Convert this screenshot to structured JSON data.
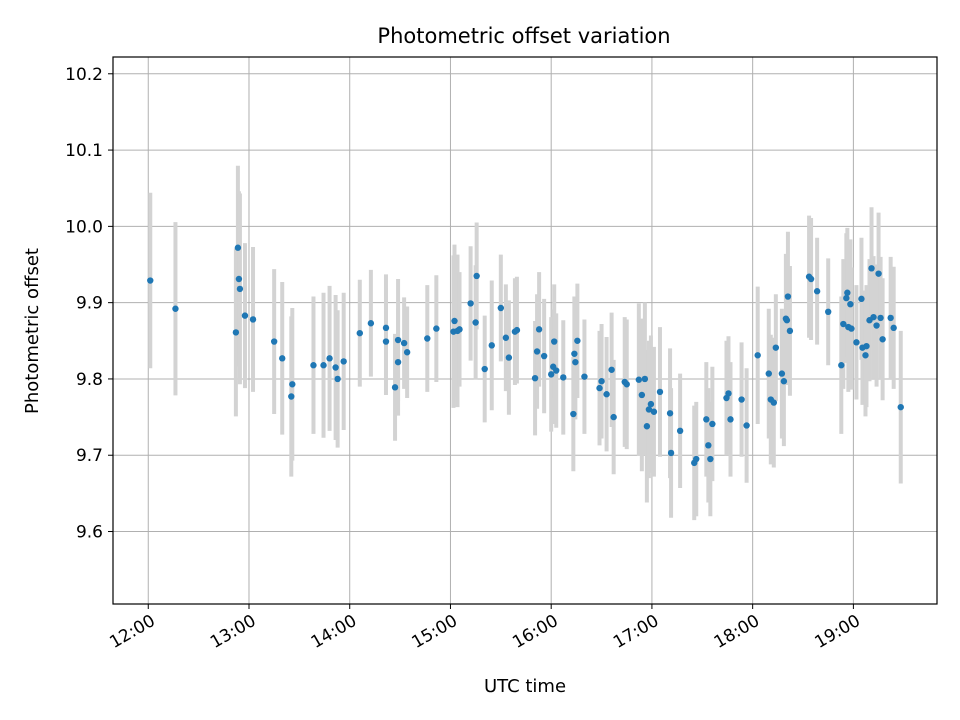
{
  "chart_data": {
    "type": "scatter",
    "title": "Photometric offset variation",
    "xlabel": "UTC time",
    "ylabel": "Photometric offset",
    "x_unit": "hours UTC",
    "xlim": [
      11.65,
      19.83
    ],
    "ylim": [
      9.505,
      10.222
    ],
    "xticks": [
      {
        "value": 12,
        "label": "12:00"
      },
      {
        "value": 13,
        "label": "13:00"
      },
      {
        "value": 14,
        "label": "14:00"
      },
      {
        "value": 15,
        "label": "15:00"
      },
      {
        "value": 16,
        "label": "16:00"
      },
      {
        "value": 17,
        "label": "17:00"
      },
      {
        "value": 18,
        "label": "18:00"
      },
      {
        "value": 19,
        "label": "19:00"
      }
    ],
    "yticks": [
      {
        "value": 9.6,
        "label": "9.6"
      },
      {
        "value": 9.7,
        "label": "9.7"
      },
      {
        "value": 9.8,
        "label": "9.8"
      },
      {
        "value": 9.9,
        "label": "9.9"
      },
      {
        "value": 10.0,
        "label": "10.0"
      },
      {
        "value": 10.1,
        "label": "10.1"
      },
      {
        "value": 10.2,
        "label": "10.2"
      }
    ],
    "grid": true,
    "colors": {
      "points": "#1f77b4",
      "errorbars": "#d3d3d3",
      "grid": "#b0b0b0"
    },
    "series": [
      {
        "points": [
          [
            12.02,
            9.929,
            0.23
          ],
          [
            12.27,
            9.892,
            0.227
          ],
          [
            12.87,
            9.861,
            0.22
          ],
          [
            12.89,
            9.972,
            0.215
          ],
          [
            12.9,
            9.931,
            0.23
          ],
          [
            12.91,
            9.918,
            0.25
          ],
          [
            12.96,
            9.883,
            0.19
          ],
          [
            13.04,
            9.878,
            0.19
          ],
          [
            13.25,
            9.849,
            0.19
          ],
          [
            13.33,
            9.827,
            0.2
          ],
          [
            13.43,
            9.793,
            0.2
          ],
          [
            13.42,
            9.777,
            0.21
          ],
          [
            13.64,
            9.818,
            0.18
          ],
          [
            13.74,
            9.818,
            0.19
          ],
          [
            13.8,
            9.827,
            0.19
          ],
          [
            13.86,
            9.815,
            0.19
          ],
          [
            13.88,
            9.8,
            0.18
          ],
          [
            13.94,
            9.823,
            0.18
          ],
          [
            14.1,
            9.86,
            0.14
          ],
          [
            14.21,
            9.873,
            0.14
          ],
          [
            14.36,
            9.867,
            0.14
          ],
          [
            14.36,
            9.849,
            0.14
          ],
          [
            14.45,
            9.789,
            0.14
          ],
          [
            14.48,
            9.822,
            0.14
          ],
          [
            14.48,
            9.851,
            0.16
          ],
          [
            14.54,
            9.847,
            0.12
          ],
          [
            14.57,
            9.835,
            0.12
          ],
          [
            14.77,
            9.853,
            0.14
          ],
          [
            14.86,
            9.866,
            0.14
          ],
          [
            15.03,
            9.862,
            0.2
          ],
          [
            15.04,
            9.876,
            0.2
          ],
          [
            15.07,
            9.863,
            0.2
          ],
          [
            15.09,
            9.865,
            0.15
          ],
          [
            15.2,
            9.899,
            0.15
          ],
          [
            15.25,
            9.874,
            0.15
          ],
          [
            15.26,
            9.935,
            0.14
          ],
          [
            15.34,
            9.813,
            0.14
          ],
          [
            15.41,
            9.844,
            0.17
          ],
          [
            15.5,
            9.893,
            0.14
          ],
          [
            15.55,
            9.854,
            0.14
          ],
          [
            15.58,
            9.828,
            0.15
          ],
          [
            15.64,
            9.862,
            0.14
          ],
          [
            15.66,
            9.864,
            0.14
          ],
          [
            15.84,
            9.801,
            0.15
          ],
          [
            15.86,
            9.836,
            0.15
          ],
          [
            15.88,
            9.865,
            0.15
          ],
          [
            15.93,
            9.83,
            0.15
          ],
          [
            16.0,
            9.806,
            0.15
          ],
          [
            16.02,
            9.816,
            0.15
          ],
          [
            16.03,
            9.849,
            0.15
          ],
          [
            16.05,
            9.811,
            0.15
          ],
          [
            16.12,
            9.802,
            0.15
          ],
          [
            16.22,
            9.754,
            0.15
          ],
          [
            16.23,
            9.833,
            0.15
          ],
          [
            16.24,
            9.822,
            0.15
          ],
          [
            16.26,
            9.85,
            0.15
          ],
          [
            16.33,
            9.803,
            0.15
          ],
          [
            16.48,
            9.788,
            0.15
          ],
          [
            16.5,
            9.797,
            0.15
          ],
          [
            16.55,
            9.78,
            0.15
          ],
          [
            16.6,
            9.812,
            0.15
          ],
          [
            16.62,
            9.75,
            0.15
          ],
          [
            16.73,
            9.796,
            0.17
          ],
          [
            16.75,
            9.793,
            0.17
          ],
          [
            16.87,
            9.799,
            0.2
          ],
          [
            16.9,
            9.779,
            0.2
          ],
          [
            16.93,
            9.8,
            0.2
          ],
          [
            16.95,
            9.738,
            0.2
          ],
          [
            16.97,
            9.76,
            0.18
          ],
          [
            16.99,
            9.767,
            0.18
          ],
          [
            17.02,
            9.757,
            0.17
          ],
          [
            17.08,
            9.783,
            0.17
          ],
          [
            17.18,
            9.755,
            0.17
          ],
          [
            17.19,
            9.703,
            0.17
          ],
          [
            17.28,
            9.732,
            0.15
          ],
          [
            17.42,
            9.69,
            0.15
          ],
          [
            17.44,
            9.695,
            0.15
          ],
          [
            17.54,
            9.747,
            0.15
          ],
          [
            17.56,
            9.713,
            0.15
          ],
          [
            17.58,
            9.695,
            0.15
          ],
          [
            17.6,
            9.741,
            0.15
          ],
          [
            17.74,
            9.775,
            0.15
          ],
          [
            17.76,
            9.781,
            0.15
          ],
          [
            17.78,
            9.747,
            0.15
          ],
          [
            17.89,
            9.773,
            0.15
          ],
          [
            17.94,
            9.739,
            0.15
          ],
          [
            18.05,
            9.831,
            0.18
          ],
          [
            18.16,
            9.807,
            0.17
          ],
          [
            18.18,
            9.773,
            0.17
          ],
          [
            18.21,
            9.769,
            0.17
          ],
          [
            18.23,
            9.841,
            0.14
          ],
          [
            18.29,
            9.807,
            0.17
          ],
          [
            18.31,
            9.797,
            0.17
          ],
          [
            18.33,
            9.879,
            0.17
          ],
          [
            18.34,
            9.877,
            0.17
          ],
          [
            18.35,
            9.908,
            0.17
          ],
          [
            18.37,
            9.863,
            0.17
          ],
          [
            18.56,
            9.934,
            0.16
          ],
          [
            18.58,
            9.931,
            0.16
          ],
          [
            18.64,
            9.915,
            0.14
          ],
          [
            18.75,
            9.888,
            0.14
          ],
          [
            18.88,
            9.818,
            0.18
          ],
          [
            18.9,
            9.872,
            0.17
          ],
          [
            18.93,
            9.906,
            0.17
          ],
          [
            18.94,
            9.913,
            0.17
          ],
          [
            18.95,
            9.868,
            0.17
          ],
          [
            18.97,
            9.898,
            0.17
          ],
          [
            18.98,
            9.866,
            0.16
          ],
          [
            19.03,
            9.848,
            0.15
          ],
          [
            19.08,
            9.905,
            0.16
          ],
          [
            19.09,
            9.841,
            0.15
          ],
          [
            19.12,
            9.831,
            0.16
          ],
          [
            19.13,
            9.843,
            0.16
          ],
          [
            19.16,
            9.877,
            0.16
          ],
          [
            19.18,
            9.945,
            0.16
          ],
          [
            19.2,
            9.881,
            0.16
          ],
          [
            19.23,
            9.87,
            0.16
          ],
          [
            19.25,
            9.938,
            0.16
          ],
          [
            19.27,
            9.88,
            0.16
          ],
          [
            19.29,
            9.852,
            0.16
          ],
          [
            19.37,
            9.88,
            0.16
          ],
          [
            19.4,
            9.867,
            0.16
          ],
          [
            19.47,
            9.763,
            0.2
          ]
        ]
      }
    ]
  }
}
